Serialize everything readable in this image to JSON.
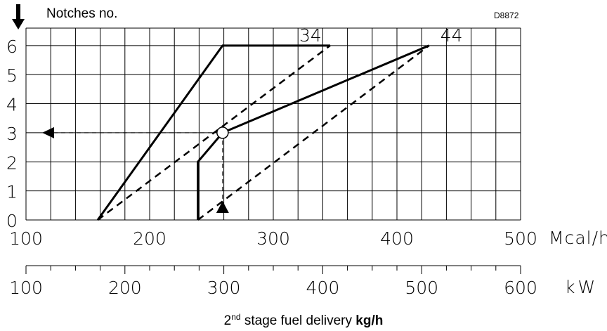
{
  "chart_data": {
    "type": "line",
    "code": "D8872",
    "ylabel": "Notches no.",
    "xlabel_prefix": "2",
    "xlabel_sup": "nd",
    "xlabel_mid": " stage fuel delivery ",
    "xlabel_unit": "kg/h",
    "xlim": [
      100,
      500
    ],
    "ylim": [
      0,
      6.6
    ],
    "y_ticks": [
      "0",
      "1",
      "2",
      "3",
      "4",
      "5",
      "6"
    ],
    "axis_mcal": {
      "unit": "Mcal/h",
      "ticks": [
        "100",
        "200",
        "300",
        "400",
        "500"
      ]
    },
    "axis_kw": {
      "unit": "kW",
      "ticks": [
        "100",
        "200",
        "300",
        "400",
        "500",
        "600"
      ]
    },
    "series": [
      {
        "name": "34",
        "style": "solid",
        "x": [
          158,
          259,
          346
        ],
        "y": [
          0,
          6,
          6
        ]
      },
      {
        "name": "34",
        "style": "dashed",
        "x": [
          158,
          346
        ],
        "y": [
          0,
          6
        ]
      },
      {
        "name": "44",
        "style": "solid",
        "x": [
          239,
          239,
          259,
          426
        ],
        "y": [
          0,
          2,
          3,
          6
        ]
      },
      {
        "name": "44",
        "style": "dashed",
        "x": [
          239,
          426
        ],
        "y": [
          0,
          6
        ]
      }
    ],
    "example": {
      "x": 259,
      "y": 3
    },
    "labels": {
      "a": "34",
      "b": "44"
    }
  }
}
